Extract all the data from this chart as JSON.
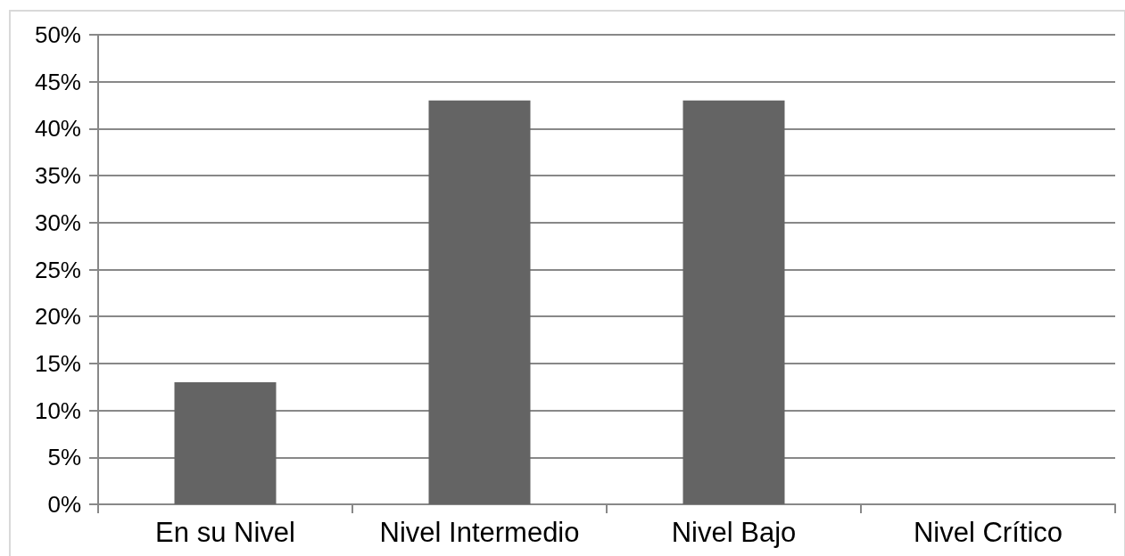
{
  "chart_data": {
    "type": "bar",
    "categories": [
      "En su Nivel",
      "Nivel Intermedio",
      "Nivel Bajo",
      "Nivel Crítico"
    ],
    "values": [
      13,
      43,
      43,
      0
    ],
    "color": "#646464",
    "ylim": [
      0,
      50
    ],
    "yticks": [
      {
        "value": 0,
        "label": "0%"
      },
      {
        "value": 5,
        "label": "5%"
      },
      {
        "value": 10,
        "label": "10%"
      },
      {
        "value": 15,
        "label": "15%"
      },
      {
        "value": 20,
        "label": "20%"
      },
      {
        "value": 25,
        "label": "25%"
      },
      {
        "value": 30,
        "label": "30%"
      },
      {
        "value": 35,
        "label": "35%"
      },
      {
        "value": 40,
        "label": "40%"
      },
      {
        "value": 45,
        "label": "45%"
      },
      {
        "value": 50,
        "label": "50%"
      }
    ],
    "grid": "y"
  }
}
